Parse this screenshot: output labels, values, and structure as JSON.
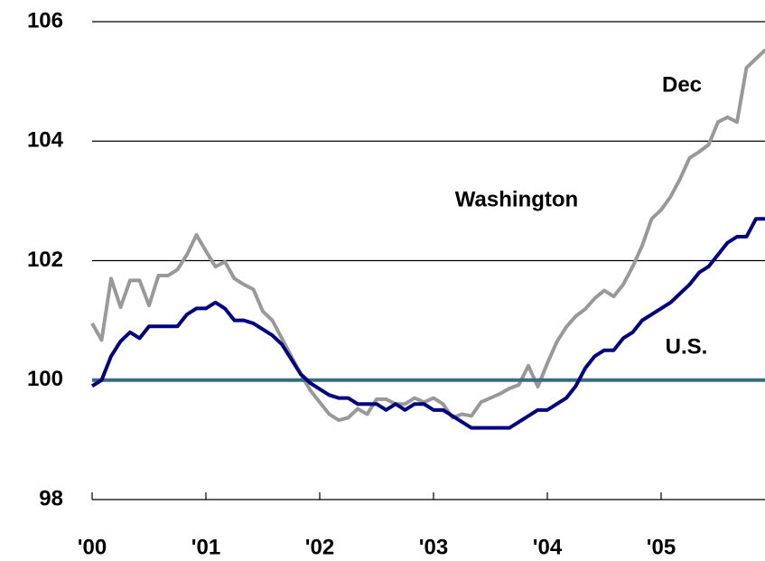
{
  "chart_data": {
    "type": "line",
    "categories": [
      "'00",
      null,
      null,
      null,
      null,
      null,
      null,
      null,
      null,
      null,
      null,
      null,
      "'01",
      null,
      null,
      null,
      null,
      null,
      null,
      null,
      null,
      null,
      null,
      null,
      "'02",
      null,
      null,
      null,
      null,
      null,
      null,
      null,
      null,
      null,
      null,
      null,
      "'03",
      null,
      null,
      null,
      null,
      null,
      null,
      null,
      null,
      null,
      null,
      null,
      "'04",
      null,
      null,
      null,
      null,
      null,
      null,
      null,
      null,
      null,
      null,
      null,
      "'05",
      null,
      null,
      null,
      null,
      null,
      null,
      null,
      null,
      null,
      null,
      null
    ],
    "series": [
      {
        "name": "Dec",
        "color": "#999999",
        "values": [
          100.95,
          100.67,
          101.7,
          101.22,
          101.67,
          101.67,
          101.25,
          101.75,
          101.75,
          101.85,
          102.1,
          102.43,
          102.16,
          101.9,
          101.98,
          101.7,
          101.6,
          101.52,
          101.15,
          101.0,
          100.7,
          100.4,
          100.1,
          99.83,
          99.63,
          99.43,
          99.33,
          99.37,
          99.52,
          99.43,
          99.68,
          99.68,
          99.6,
          99.6,
          99.7,
          99.63,
          99.7,
          99.6,
          99.37,
          99.43,
          99.4,
          99.63,
          99.7,
          99.77,
          99.86,
          99.92,
          100.24,
          99.89,
          100.28,
          100.64,
          100.89,
          101.07,
          101.19,
          101.37,
          101.5,
          101.4,
          101.6,
          101.9,
          102.25,
          102.7,
          102.85,
          103.07,
          103.37,
          103.72,
          103.82,
          103.94,
          104.32,
          104.4,
          104.32,
          105.23,
          105.38,
          105.53
        ]
      },
      {
        "name": "Washington",
        "color": "#000080",
        "values": [
          99.9,
          100.0,
          100.4,
          100.65,
          100.8,
          100.7,
          100.9,
          100.9,
          100.9,
          100.9,
          101.1,
          101.2,
          101.2,
          101.3,
          101.2,
          101.0,
          101.0,
          100.95,
          100.85,
          100.75,
          100.6,
          100.35,
          100.1,
          99.95,
          99.85,
          99.75,
          99.7,
          99.7,
          99.6,
          99.6,
          99.6,
          99.5,
          99.6,
          99.5,
          99.6,
          99.6,
          99.5,
          99.5,
          99.4,
          99.3,
          99.2,
          99.2,
          99.2,
          99.2,
          99.2,
          99.3,
          99.4,
          99.5,
          99.5,
          99.6,
          99.7,
          99.9,
          100.2,
          100.4,
          100.5,
          100.5,
          100.7,
          100.8,
          101.0,
          101.1,
          101.2,
          101.3,
          101.45,
          101.6,
          101.8,
          101.9,
          102.1,
          102.3,
          102.4,
          102.4,
          102.7,
          102.7
        ]
      },
      {
        "name": "U.S.",
        "color": "#3a6b7e",
        "values": [
          100,
          100,
          100,
          100,
          100,
          100,
          100,
          100,
          100,
          100,
          100,
          100,
          100,
          100,
          100,
          100,
          100,
          100,
          100,
          100,
          100,
          100,
          100,
          100,
          100,
          100,
          100,
          100,
          100,
          100,
          100,
          100,
          100,
          100,
          100,
          100,
          100,
          100,
          100,
          100,
          100,
          100,
          100,
          100,
          100,
          100,
          100,
          100,
          100,
          100,
          100,
          100,
          100,
          100,
          100,
          100,
          100,
          100,
          100,
          100,
          100,
          100,
          100,
          100,
          100,
          100,
          100,
          100,
          100,
          100,
          100,
          100
        ]
      }
    ],
    "ylim": [
      98,
      106
    ],
    "yticks": [
      98,
      100,
      102,
      104,
      106
    ],
    "grid": true
  }
}
